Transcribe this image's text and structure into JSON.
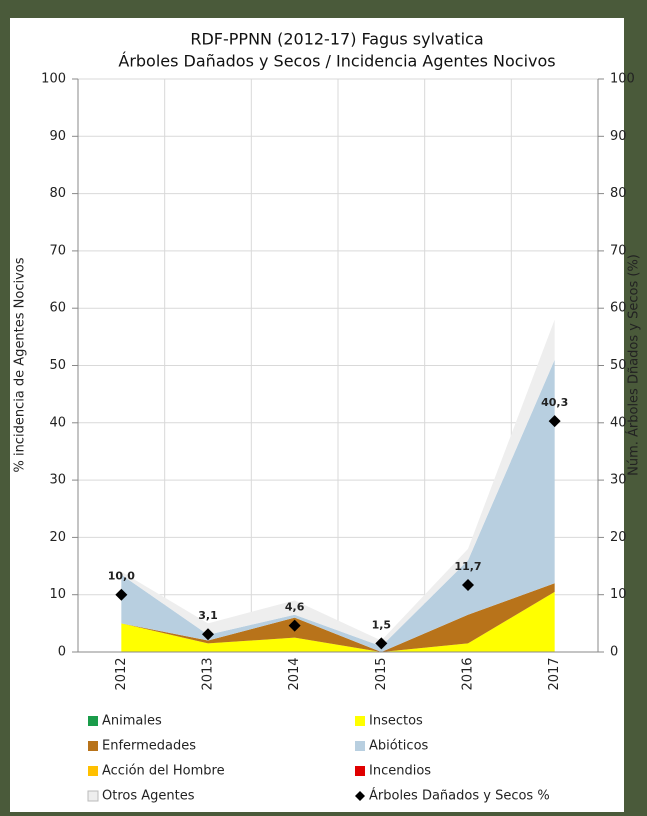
{
  "chart_data": {
    "type": "area",
    "title": "RDF-PPNN (2012-17) Fagus sylvatica",
    "subtitle": "Árboles Dañados y Secos / Incidencia Agentes Nocivos",
    "y_label": "% incidencia de Agentes Nocivos",
    "y2_label": "Núm. Árboles Dñados y Secos (%)",
    "categories": [
      "2012",
      "2013",
      "2014",
      "2015",
      "2016",
      "2017"
    ],
    "series": [
      {
        "name": "Animales",
        "color": "#1a9c4a",
        "values": [
          0,
          0,
          0,
          0,
          0,
          0
        ]
      },
      {
        "name": "Insectos",
        "color": "#ffff00",
        "values": [
          5,
          1.5,
          2.5,
          0,
          1.5,
          10.5
        ]
      },
      {
        "name": "Enfermedades",
        "color": "#b8731a",
        "values": [
          0,
          0.5,
          3.5,
          0,
          5,
          1.5
        ]
      },
      {
        "name": "Abióticos",
        "color": "#b8cfe0",
        "values": [
          8.5,
          1,
          0.5,
          1,
          9.5,
          39
        ]
      },
      {
        "name": "Acción del Hombre",
        "color": "#ffc000",
        "values": [
          0,
          0,
          0,
          0,
          0,
          0
        ]
      },
      {
        "name": "Incendios",
        "color": "#e00000",
        "values": [
          0,
          0,
          0,
          0,
          0,
          0
        ]
      },
      {
        "name": "Otros Agentes",
        "color": "#eeeeee",
        "values": [
          0.5,
          2,
          2.5,
          1,
          2,
          7
        ]
      },
      {
        "name": "Árboles Dañados y Secos %",
        "color": "#000000",
        "type": "scatter",
        "axis": "y2",
        "values": [
          10.0,
          3.1,
          4.6,
          1.5,
          11.7,
          40.3
        ],
        "value_labels": [
          "10,0",
          "3,1",
          "4,6",
          "1,5",
          "11,7",
          "40,3"
        ]
      }
    ],
    "ylim": [
      0,
      100
    ],
    "yticks": [
      0,
      10,
      20,
      30,
      40,
      50,
      60,
      70,
      80,
      90,
      100
    ],
    "y2lim": [
      0,
      100
    ],
    "y2ticks": [
      0,
      10,
      20,
      30,
      40,
      50,
      60,
      70,
      80,
      90,
      100
    ],
    "grid": true
  }
}
